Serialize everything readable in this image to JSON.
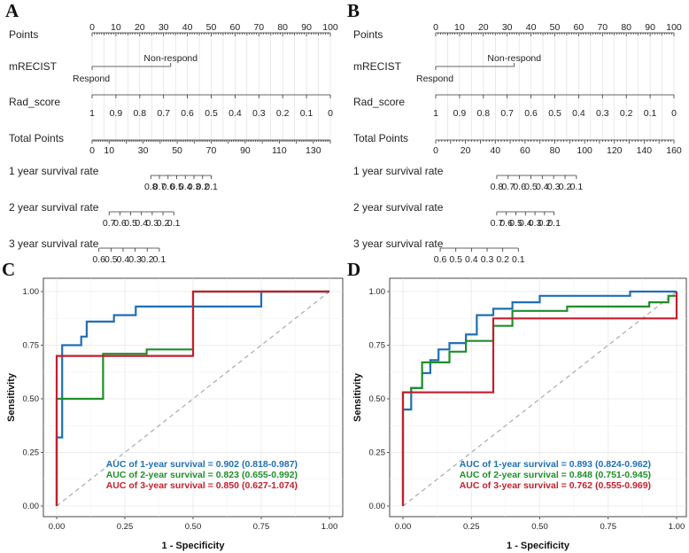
{
  "panels": {
    "A": "A",
    "B": "B",
    "C": "C",
    "D": "D"
  },
  "colors": {
    "blue": "#1f6fb5",
    "green": "#1f8f2a",
    "red": "#c41f2f",
    "diag": "#aaaaaa"
  },
  "chart_data": [
    {
      "type": "nomogram",
      "panel": "A",
      "rows": [
        {
          "label": "Points",
          "range": [
            0,
            100
          ],
          "ticks": [
            0,
            10,
            20,
            30,
            40,
            50,
            60,
            70,
            80,
            90,
            100
          ]
        },
        {
          "label": "mRECIST",
          "levels": [
            {
              "name": "Respond",
              "points": 0
            },
            {
              "name": "Non-respond",
              "points": 33
            }
          ]
        },
        {
          "label": "Rad_score",
          "values": [
            1,
            0.9,
            0.8,
            0.7,
            0.6,
            0.5,
            0.4,
            0.3,
            0.2,
            0.1,
            0
          ],
          "ticks": [
            "1",
            "0.9",
            "0.8",
            "0.7",
            "0.6",
            "0.5",
            "0.4",
            "0.3",
            "0.2",
            "0.1",
            "0"
          ]
        },
        {
          "label": "Total Points",
          "range": [
            0,
            140
          ],
          "ticks": [
            "0",
            "10",
            "30",
            "50",
            "70",
            "90",
            "110",
            "130"
          ]
        },
        {
          "label": "1 year survival rate",
          "total_points_range": [
            34.5,
            70
          ],
          "ticks": [
            "0.8",
            "0.7",
            "0.6",
            "0.5",
            "0.4",
            "0.3",
            "0.2",
            "0.1"
          ]
        },
        {
          "label": "2 year survival rate",
          "total_points_range": [
            10,
            48
          ],
          "ticks": [
            "0.7",
            "0.6",
            "0.5",
            "0.4",
            "0.3",
            "0.2",
            "0.1"
          ]
        },
        {
          "label": "3 year survival rate",
          "total_points_range": [
            4,
            39.5
          ],
          "ticks": [
            "0.6",
            "0.5",
            "0.4",
            "0.3",
            "0.2",
            "0.1"
          ]
        }
      ]
    },
    {
      "type": "nomogram",
      "panel": "B",
      "rows": [
        {
          "label": "Points",
          "range": [
            0,
            100
          ],
          "ticks": [
            0,
            10,
            20,
            30,
            40,
            50,
            60,
            70,
            80,
            90,
            100
          ]
        },
        {
          "label": "mRECIST",
          "levels": [
            {
              "name": "Respond",
              "points": 0
            },
            {
              "name": "Non-respond",
              "points": 33
            }
          ]
        },
        {
          "label": "Rad_score",
          "values": [
            1,
            0.9,
            0.8,
            0.7,
            0.6,
            0.5,
            0.4,
            0.3,
            0.2,
            0.1,
            0
          ],
          "ticks": [
            "1",
            "0.9",
            "0.8",
            "0.7",
            "0.6",
            "0.5",
            "0.4",
            "0.3",
            "0.2",
            "0.1",
            "0"
          ]
        },
        {
          "label": "Total Points",
          "range": [
            0,
            160
          ],
          "ticks": [
            "0",
            "20",
            "40",
            "60",
            "80",
            "100",
            "120",
            "140",
            "160"
          ]
        },
        {
          "label": "1 year survival rate",
          "total_points_range": [
            41,
            94.5
          ],
          "ticks": [
            "0.8",
            "0.7",
            "0.6",
            "0.5",
            "0.4",
            "0.3",
            "0.2",
            "0.1"
          ]
        },
        {
          "label": "2 year survival rate",
          "total_points_range": [
            41,
            79.5
          ],
          "ticks": [
            "0.7",
            "0.6",
            "0.5",
            "0.4",
            "0.3",
            "0.2",
            "0.1"
          ]
        },
        {
          "label": "3 year survival rate",
          "total_points_range": [
            3,
            55.5
          ],
          "ticks": [
            "0.6",
            "0.5",
            "0.4",
            "0.3",
            "0.2",
            "0.1"
          ]
        }
      ]
    },
    {
      "type": "line",
      "panel": "C",
      "xlabel": "1 - Specificity",
      "ylabel": "Sensitivity",
      "xlim": [
        0,
        1
      ],
      "ylim": [
        0,
        1
      ],
      "xticks": [
        "0.00",
        "0.25",
        "0.50",
        "0.75",
        "1.00"
      ],
      "yticks": [
        "0.00",
        "0.25",
        "0.50",
        "0.75",
        "1.00"
      ],
      "grid": true,
      "series": [
        {
          "name": "1-year",
          "color": "blue",
          "auc_label": "AUC of 1-year survival = 0.902",
          "ci_label": "(0.818-0.987)",
          "x": [
            0,
            0,
            0.02,
            0.02,
            0.04,
            0.04,
            0.09,
            0.09,
            0.11,
            0.11,
            0.14,
            0.14,
            0.21,
            0.21,
            0.29,
            0.29,
            0.36,
            0.36,
            0.75,
            0.75,
            1
          ],
          "y": [
            0,
            0.32,
            0.32,
            0.75,
            0.75,
            0.75,
            0.75,
            0.79,
            0.79,
            0.86,
            0.86,
            0.86,
            0.86,
            0.89,
            0.89,
            0.93,
            0.93,
            0.93,
            0.93,
            1,
            1
          ]
        },
        {
          "name": "2-year",
          "color": "green",
          "auc_label": "AUC of 2-year survival = 0.823",
          "ci_label": "(0.655-0.992)",
          "x": [
            0,
            0,
            0,
            0.17,
            0.17,
            0.33,
            0.33,
            0.5,
            0.5,
            1
          ],
          "y": [
            0,
            0,
            0.5,
            0.5,
            0.71,
            0.71,
            0.73,
            0.73,
            1,
            1
          ]
        },
        {
          "name": "3-year",
          "color": "red",
          "auc_label": "AUC of 3-year survival = 0.850",
          "ci_label": "(0.627-1.074)",
          "x": [
            0,
            0,
            0.5,
            0.5,
            1
          ],
          "y": [
            0,
            0.7,
            0.7,
            1,
            1
          ]
        }
      ]
    },
    {
      "type": "line",
      "panel": "D",
      "xlabel": "1 - Specificity",
      "ylabel": "Sensitivity",
      "xlim": [
        0,
        1
      ],
      "ylim": [
        0,
        1
      ],
      "xticks": [
        "0.00",
        "0.25",
        "0.50",
        "0.75",
        "1.00"
      ],
      "yticks": [
        "0.00",
        "0.25",
        "0.50",
        "0.75",
        "1.00"
      ],
      "grid": true,
      "series": [
        {
          "name": "1-year",
          "color": "blue",
          "auc_label": "AUC of 1-year survival = 0.893",
          "ci_label": "(0.824-0.962)",
          "x": [
            0,
            0,
            0.03,
            0.03,
            0.07,
            0.07,
            0.1,
            0.1,
            0.13,
            0.13,
            0.17,
            0.17,
            0.23,
            0.23,
            0.27,
            0.27,
            0.33,
            0.33,
            0.4,
            0.4,
            0.5,
            0.5,
            0.83,
            0.83,
            1
          ],
          "y": [
            0,
            0.45,
            0.45,
            0.55,
            0.55,
            0.62,
            0.62,
            0.68,
            0.68,
            0.73,
            0.73,
            0.76,
            0.76,
            0.8,
            0.8,
            0.89,
            0.89,
            0.92,
            0.92,
            0.95,
            0.95,
            0.98,
            0.98,
            1,
            1
          ]
        },
        {
          "name": "2-year",
          "color": "green",
          "auc_label": "AUC of 2-year survival = 0.848",
          "ci_label": "(0.751-0.945)",
          "x": [
            0,
            0,
            0.03,
            0.03,
            0.07,
            0.07,
            0.17,
            0.17,
            0.23,
            0.23,
            0.33,
            0.33,
            0.4,
            0.4,
            0.6,
            0.6,
            0.9,
            0.9,
            0.97,
            0.97,
            1
          ],
          "y": [
            0,
            0.53,
            0.53,
            0.55,
            0.55,
            0.67,
            0.67,
            0.72,
            0.72,
            0.77,
            0.77,
            0.84,
            0.84,
            0.91,
            0.91,
            0.93,
            0.93,
            0.95,
            0.95,
            0.98,
            0.98
          ]
        },
        {
          "name": "3-year",
          "color": "red",
          "auc_label": "AUC of 3-year survival = 0.762",
          "ci_label": "(0.555-0.969)",
          "x": [
            0,
            0,
            0.33,
            0.33,
            0.67,
            0.67,
            1,
            1
          ],
          "y": [
            0,
            0.53,
            0.53,
            0.875,
            0.875,
            0.875,
            0.875,
            1
          ]
        }
      ]
    }
  ]
}
